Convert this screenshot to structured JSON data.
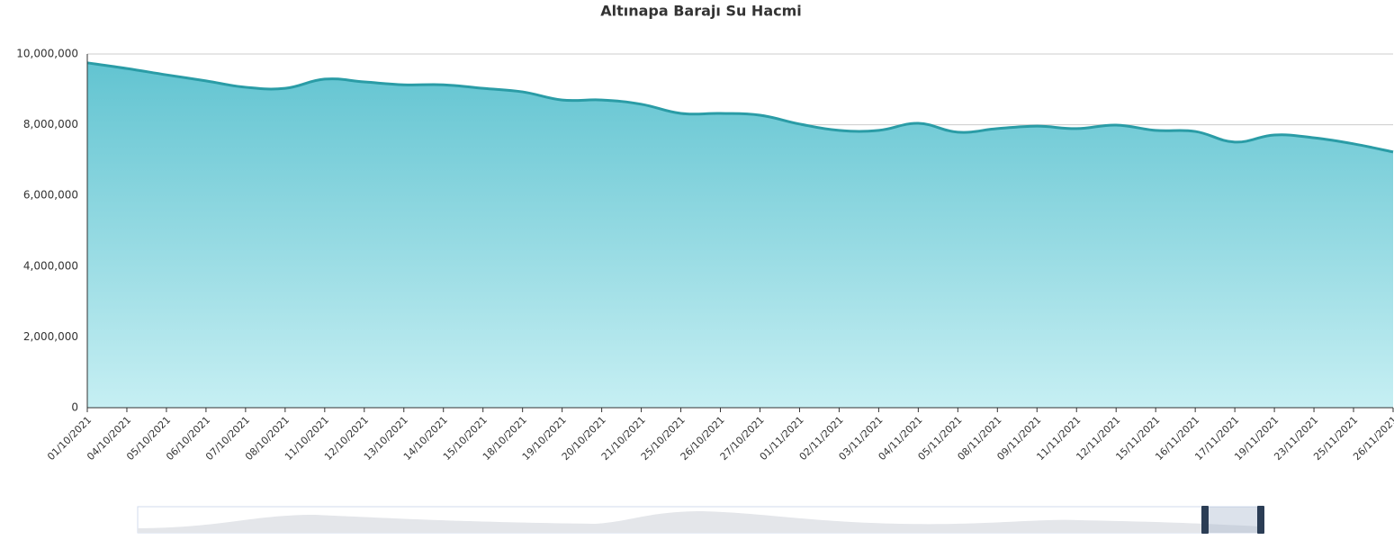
{
  "chart_data": {
    "type": "area",
    "title": "Altınapa Barajı Su Hacmi",
    "categories": [
      "01/10/2021",
      "04/10/2021",
      "05/10/2021",
      "06/10/2021",
      "07/10/2021",
      "08/10/2021",
      "11/10/2021",
      "12/10/2021",
      "13/10/2021",
      "14/10/2021",
      "15/10/2021",
      "18/10/2021",
      "19/10/2021",
      "20/10/2021",
      "21/10/2021",
      "25/10/2021",
      "26/10/2021",
      "27/10/2021",
      "01/11/2021",
      "02/11/2021",
      "03/11/2021",
      "04/11/2021",
      "05/11/2021",
      "08/11/2021",
      "09/11/2021",
      "11/11/2021",
      "12/11/2021",
      "15/11/2021",
      "16/11/2021",
      "17/11/2021",
      "19/11/2021",
      "23/11/2021",
      "25/11/2021",
      "26/11/2021"
    ],
    "values": [
      9750000,
      9590000,
      9410000,
      9240000,
      9060000,
      9030000,
      9290000,
      9210000,
      9130000,
      9130000,
      9030000,
      8930000,
      8700000,
      8700000,
      8580000,
      8320000,
      8320000,
      8270000,
      8020000,
      7840000,
      7840000,
      8040000,
      7790000,
      7890000,
      7960000,
      7890000,
      7990000,
      7840000,
      7810000,
      7510000,
      7710000,
      7630000,
      7460000,
      7230000
    ],
    "color": "#2a9ca6",
    "ylim": [
      0,
      10000000
    ],
    "yticks": [
      0,
      {
        "value": 2000000,
        "label": "2,000,000"
      },
      {
        "value": 4000000,
        "label": "4,000,000"
      },
      {
        "value": 6000000,
        "label": "6,000,000"
      },
      {
        "value": 8000000,
        "label": "8,000,000"
      },
      {
        "value": 10000000,
        "label": "10,000,000"
      }
    ],
    "grid": true
  }
}
